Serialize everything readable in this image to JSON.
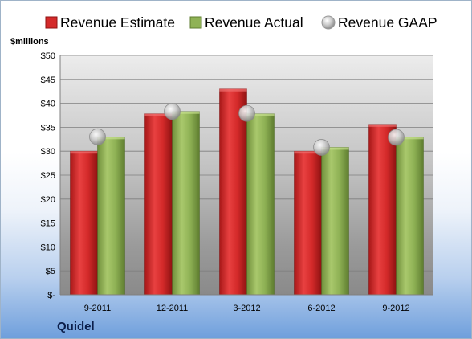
{
  "company": "Quidel",
  "chart_data": {
    "type": "bar",
    "unit_label": "$millions",
    "categories": [
      "9-2011",
      "12-2011",
      "3-2012",
      "6-2012",
      "9-2012"
    ],
    "ylim": [
      0,
      50
    ],
    "yticks": [
      {
        "value": 0,
        "label": "$-"
      },
      {
        "value": 5,
        "label": "$5"
      },
      {
        "value": 10,
        "label": "$10"
      },
      {
        "value": 15,
        "label": "$15"
      },
      {
        "value": 20,
        "label": "$20"
      },
      {
        "value": 25,
        "label": "$25"
      },
      {
        "value": 30,
        "label": "$30"
      },
      {
        "value": 35,
        "label": "$35"
      },
      {
        "value": 40,
        "label": "$40"
      },
      {
        "value": 45,
        "label": "$45"
      },
      {
        "value": 50,
        "label": "$50"
      }
    ],
    "grid": true,
    "legend_position": "top",
    "series": [
      {
        "name": "Revenue Estimate",
        "type": "bar",
        "color": "#d42a2a",
        "values": [
          30.0,
          37.8,
          43.0,
          30.0,
          35.6
        ]
      },
      {
        "name": "Revenue Actual",
        "type": "bar",
        "color": "#8fb255",
        "values": [
          33.0,
          38.3,
          37.8,
          30.8,
          33.0
        ]
      },
      {
        "name": "Revenue GAAP",
        "type": "marker",
        "color": "#b8b8b8",
        "values": [
          33.0,
          38.3,
          37.9,
          30.8,
          32.9
        ]
      }
    ]
  }
}
